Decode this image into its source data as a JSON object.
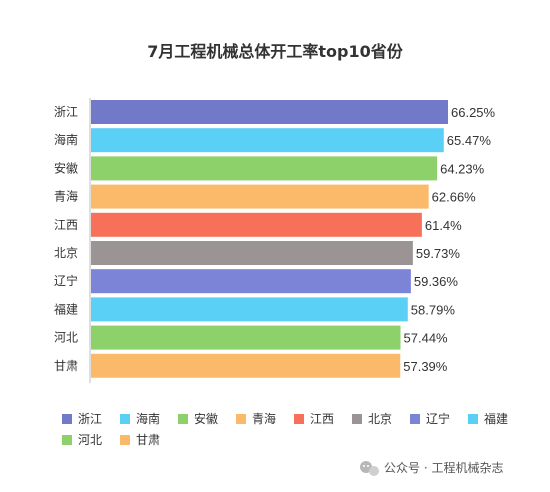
{
  "chart_data": {
    "type": "bar",
    "orientation": "horizontal",
    "title": "7月工程机械总体开工率top10省份",
    "categories": [
      "浙江",
      "海南",
      "安徽",
      "青海",
      "江西",
      "北京",
      "辽宁",
      "福建",
      "河北",
      "甘肃"
    ],
    "values": [
      66.25,
      65.47,
      64.23,
      62.66,
      61.4,
      59.73,
      59.36,
      58.79,
      57.44,
      57.39
    ],
    "value_labels": [
      "66.25%",
      "65.47%",
      "64.23%",
      "62.66%",
      "61.4%",
      "59.73%",
      "59.36%",
      "58.79%",
      "57.44%",
      "57.39%"
    ],
    "colors": [
      "#7279c8",
      "#5bd0f7",
      "#8dd16b",
      "#fbb96a",
      "#f6705a",
      "#9a9494",
      "#7b84d6",
      "#5bd0f7",
      "#8dd16b",
      "#fbb96a"
    ],
    "xlim": [
      0,
      66.25
    ],
    "grid": false,
    "legend": {
      "placement": "bottom-left",
      "entries": [
        "浙江",
        "海南",
        "安徽",
        "青海",
        "江西",
        "北京",
        "辽宁",
        "福建",
        "河北",
        "甘肃"
      ]
    }
  },
  "watermark": {
    "icon": "wechat-icon",
    "text": "公众号 · 工程机械杂志"
  }
}
